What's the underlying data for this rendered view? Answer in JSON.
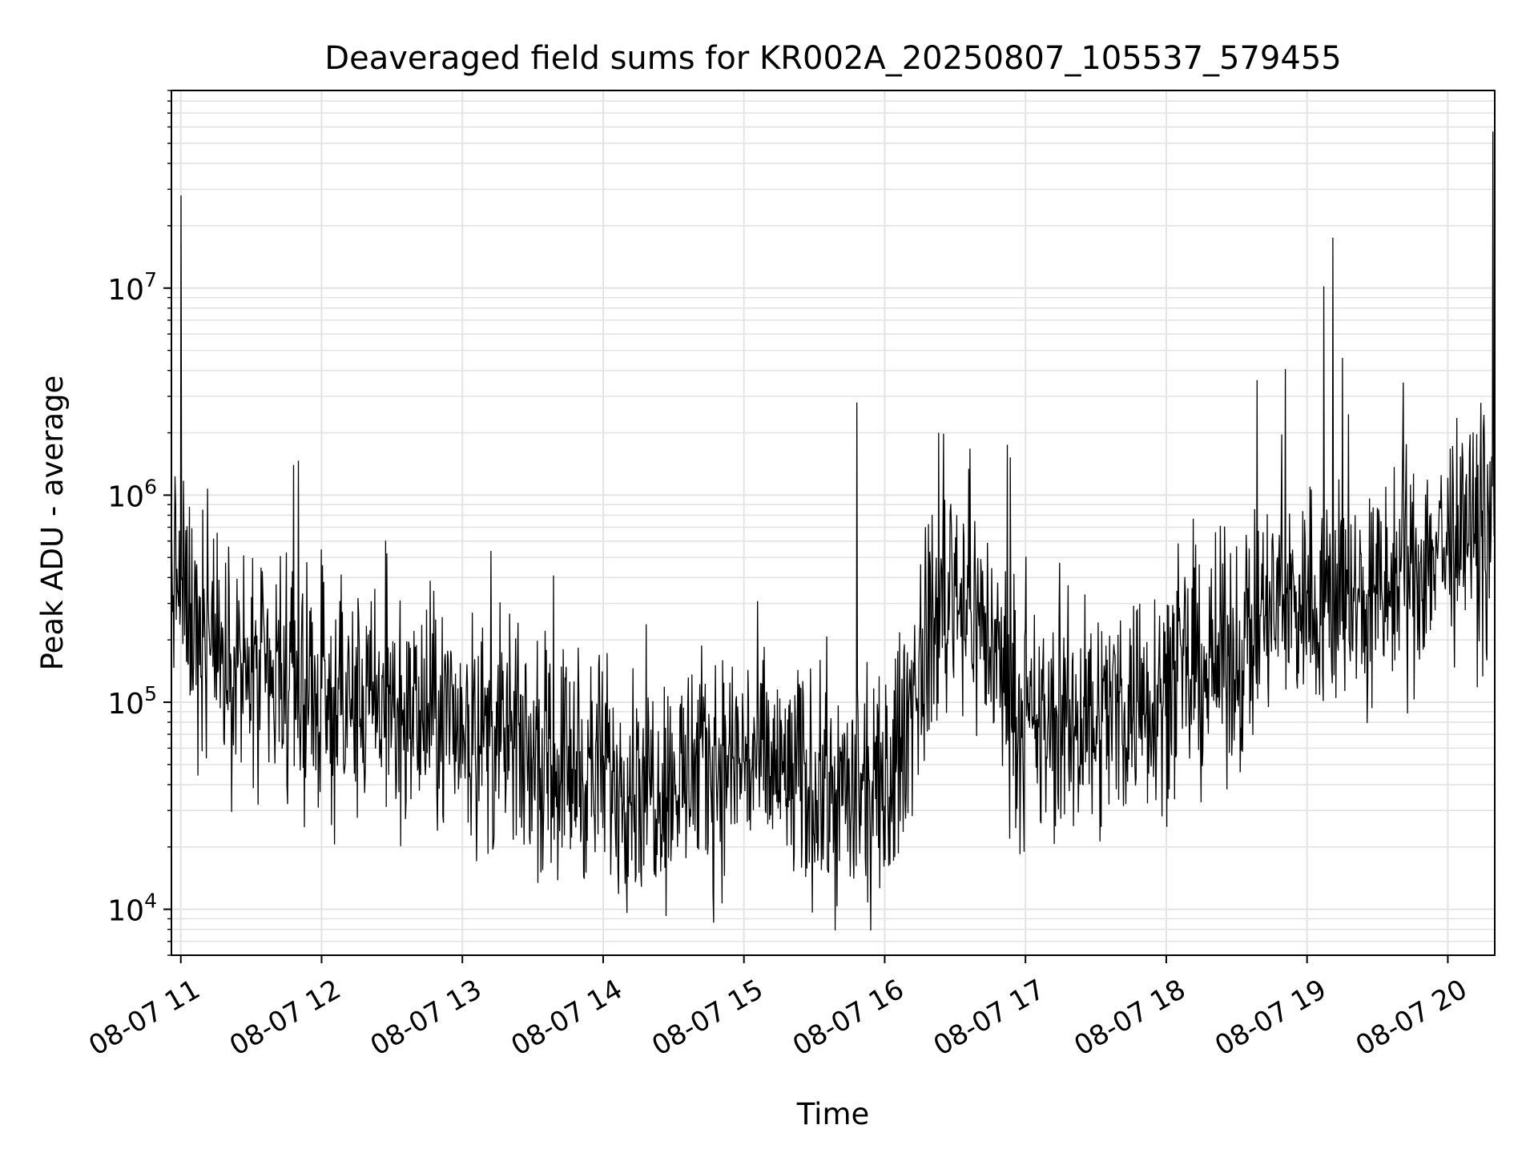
{
  "chart_data": {
    "type": "line",
    "title": "Deaveraged field sums for KR002A_20250807_105537_579455",
    "xlabel": "Time",
    "ylabel": "Peak ADU - average",
    "yscale": "log",
    "ylim": [
      6000,
      90000000
    ],
    "xlim": [
      "2025-08-07 10:56",
      "2025-08-07 20:20"
    ],
    "grid": true,
    "line_color": "#000000",
    "x_tick_labels": [
      "08-07 11",
      "08-07 12",
      "08-07 13",
      "08-07 14",
      "08-07 15",
      "08-07 16",
      "08-07 17",
      "08-07 18",
      "08-07 19",
      "08-07 20"
    ],
    "y_ticks": [
      {
        "base": "10",
        "exp": "4"
      },
      {
        "base": "10",
        "exp": "5"
      },
      {
        "base": "10",
        "exp": "6"
      },
      {
        "base": "10",
        "exp": "7"
      }
    ],
    "trend": {
      "x": [
        "2025-08-07 10:56",
        "2025-08-07 11:05",
        "2025-08-07 11:30",
        "2025-08-07 12:00",
        "2025-08-07 12:30",
        "2025-08-07 13:00",
        "2025-08-07 13:30",
        "2025-08-07 14:00",
        "2025-08-07 14:30",
        "2025-08-07 15:00",
        "2025-08-07 15:30",
        "2025-08-07 16:00",
        "2025-08-07 16:15",
        "2025-08-07 16:30",
        "2025-08-07 16:45",
        "2025-08-07 17:00",
        "2025-08-07 17:30",
        "2025-08-07 18:00",
        "2025-08-07 18:30",
        "2025-08-07 18:45",
        "2025-08-07 19:00",
        "2025-08-07 19:30",
        "2025-08-07 19:55",
        "2025-08-07 20:20"
      ],
      "y": [
        450000,
        250000,
        120000,
        100000,
        90000,
        80000,
        55000,
        45000,
        42000,
        55000,
        38000,
        32000,
        150000,
        400000,
        200000,
        70000,
        85000,
        120000,
        170000,
        280000,
        320000,
        300000,
        560000,
        650000
      ]
    },
    "spikes": {
      "x": [
        "2025-08-07 11:00",
        "2025-08-07 11:48",
        "2025-08-07 15:48",
        "2025-08-07 16:23",
        "2025-08-07 16:52",
        "2025-08-07 19:07",
        "2025-08-07 19:11",
        "2025-08-07 19:15",
        "2025-08-07 19:41",
        "2025-08-07 20:19"
      ],
      "y": [
        28000000,
        1400000,
        2800000,
        2000000,
        1750000,
        10200000,
        17500000,
        4600000,
        3500000,
        57000000
      ]
    }
  }
}
